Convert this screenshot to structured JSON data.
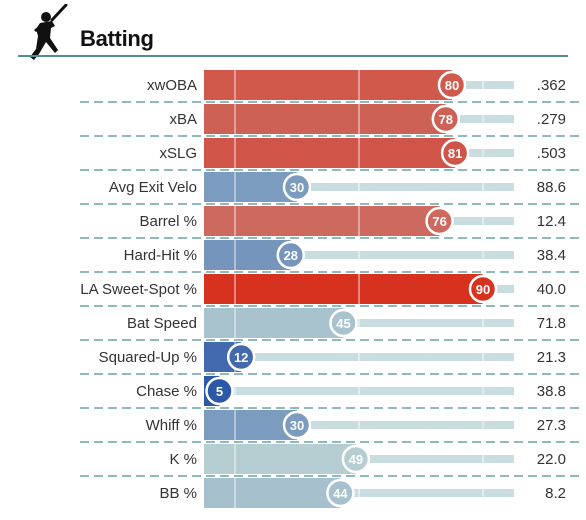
{
  "header": {
    "title": "Batting",
    "icon": "batter-icon"
  },
  "chart_data": {
    "type": "bar",
    "title": "Batting",
    "xlim": [
      0,
      100
    ],
    "categories": [
      "xwOBA",
      "xBA",
      "xSLG",
      "Avg Exit Velo",
      "Barrel %",
      "Hard-Hit %",
      "LA Sweet-Spot %",
      "Bat Speed",
      "Squared-Up %",
      "Chase %",
      "Whiff %",
      "K %",
      "BB %"
    ],
    "percentiles": [
      80,
      78,
      81,
      30,
      76,
      28,
      90,
      45,
      12,
      5,
      30,
      49,
      44
    ],
    "values": [
      ".362",
      ".279",
      ".503",
      "88.6",
      "12.4",
      "38.4",
      "40.0",
      "71.8",
      "21.3",
      "38.8",
      "27.3",
      "22.0",
      "8.2"
    ],
    "percentile_labels": [
      "80",
      "78",
      "81",
      "30",
      "76",
      "28",
      "90",
      "45",
      "12",
      "5",
      "30",
      "49",
      "44"
    ],
    "colors": {
      "high": "#d7311f",
      "mid": "#b9d1d3",
      "low": "#2d57a7",
      "track": "#c9dde0",
      "divider": "#4e8f93"
    }
  }
}
